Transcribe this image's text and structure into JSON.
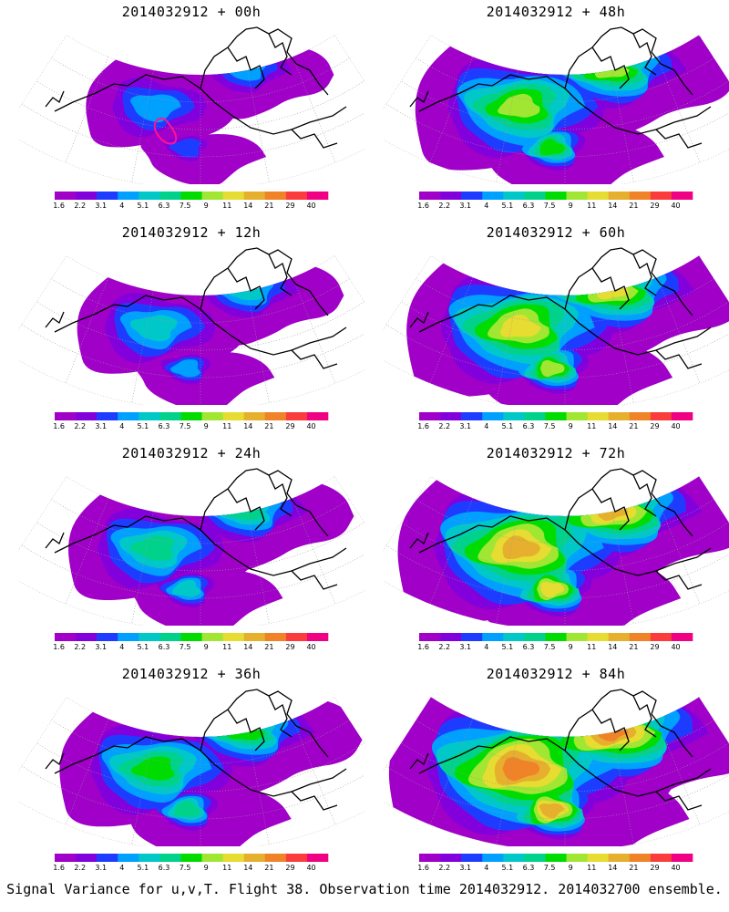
{
  "figure": {
    "footer": "Signal Variance for u,v,T. Flight 38. Observation time 2014032912. 2014032700 ensemble."
  },
  "colorbar": {
    "labels": [
      "1.6",
      "2.2",
      "3.1",
      "4",
      "5.1",
      "6.3",
      "7.5",
      "9",
      "11",
      "14",
      "21",
      "29",
      "40"
    ],
    "colors": [
      "#a000c8",
      "#8200dc",
      "#1e3cff",
      "#00a0ff",
      "#00c8c8",
      "#00d28c",
      "#00dc00",
      "#a0e632",
      "#e6dc32",
      "#e6af2d",
      "#f08228",
      "#fa3c3c",
      "#f00082"
    ]
  },
  "colors": {
    "coast": "#000000",
    "grid": "#999999",
    "high_contour": "#ff1493"
  },
  "panels": [
    {
      "title": "2014032912 + 00h",
      "level": 0
    },
    {
      "title": "2014032912 + 48h",
      "level": 4
    },
    {
      "title": "2014032912 + 12h",
      "level": 1
    },
    {
      "title": "2014032912 + 60h",
      "level": 5
    },
    {
      "title": "2014032912 + 24h",
      "level": 2
    },
    {
      "title": "2014032912 + 72h",
      "level": 6
    },
    {
      "title": "2014032912 + 36h",
      "level": 3
    },
    {
      "title": "2014032912 + 84h",
      "level": 7
    }
  ]
}
